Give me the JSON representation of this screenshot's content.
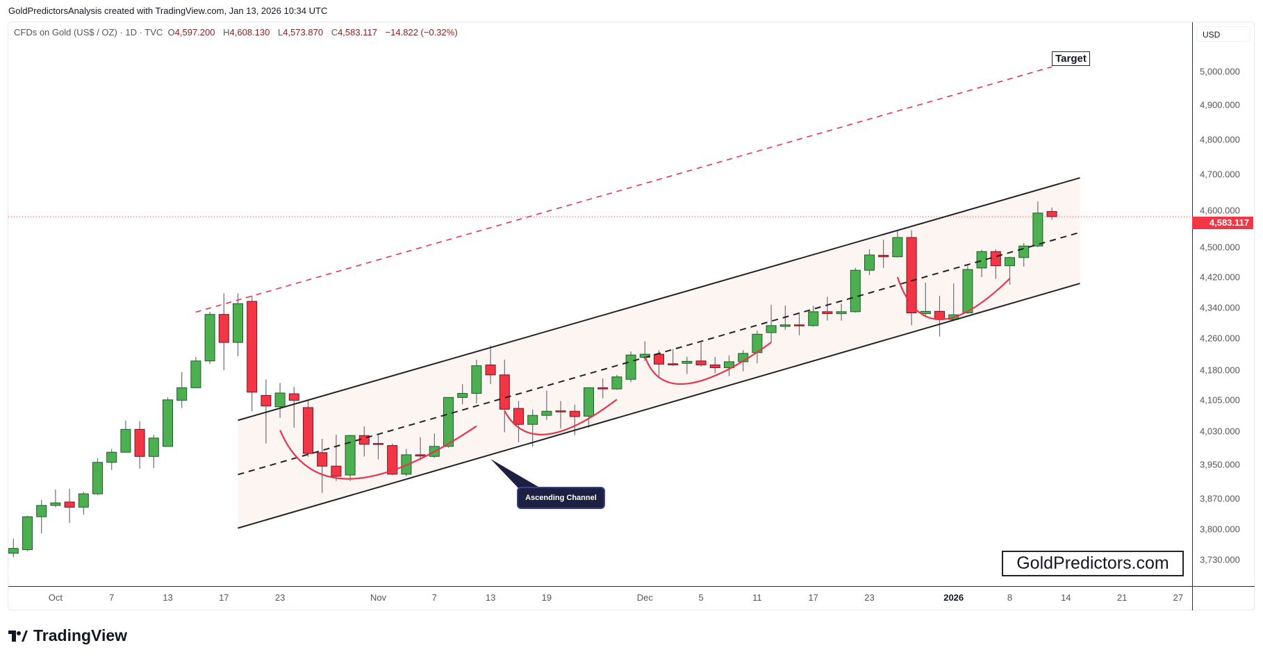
{
  "header": {
    "credit": "GoldPredictorsAnalysis created with TradingView.com, Jan 13, 2026 10:34 UTC",
    "symbol": "CFDs on Gold (US$ / OZ) · 1D · TVC",
    "open_label": "O",
    "open": "4,597.200",
    "high_label": "H",
    "high": "4,608.130",
    "low_label": "L",
    "low": "4,573.870",
    "close_label": "C",
    "close": "4,583.117",
    "change": "−14.822 (−0.32%)"
  },
  "price_axis": {
    "currency": "USD",
    "last_price": "4,583.117"
  },
  "brand": {
    "watermark": "GoldPredictors.com",
    "platform": "TradingView"
  },
  "colors": {
    "up": "#4caf50",
    "up_border": "#1e5b2a",
    "down": "#f23645",
    "down_border": "#7a1020",
    "channel": "#222222",
    "target_line": "#e8334a",
    "arc": "#e8334a",
    "channel_fill": "#fdf5f2",
    "callout_bg": "#1d2040"
  },
  "chart_data": {
    "type": "candlestick",
    "scale": "log",
    "ylim": [
      3672,
      5150
    ],
    "grid": false,
    "yticks": [
      5000,
      4900,
      4800,
      4700,
      4600,
      4500,
      4420,
      4340,
      4260,
      4180,
      4105,
      4030,
      3950,
      3870,
      3800,
      3730
    ],
    "ytick_labels": [
      "5,000.000",
      "4,900.000",
      "4,800.000",
      "4,700.000",
      "4,600.000",
      "4,500.000",
      "4,420.000",
      "4,340.000",
      "4,260.000",
      "4,180.000",
      "4,105.000",
      "4,030.000",
      "3,950.000",
      "3,870.000",
      "3,800.000",
      "3,730.000"
    ],
    "xticks": [
      {
        "date": "2025-10-01",
        "label": "Oct"
      },
      {
        "date": "2025-10-07",
        "label": "7"
      },
      {
        "date": "2025-10-13",
        "label": "13"
      },
      {
        "date": "2025-10-17",
        "label": "17"
      },
      {
        "date": "2025-10-23",
        "label": "23"
      },
      {
        "date": "2025-11-03",
        "label": "Nov"
      },
      {
        "date": "2025-11-07",
        "label": "7"
      },
      {
        "date": "2025-11-13",
        "label": "13"
      },
      {
        "date": "2025-11-19",
        "label": "19"
      },
      {
        "date": "2025-12-01",
        "label": "Dec"
      },
      {
        "date": "2025-12-05",
        "label": "5"
      },
      {
        "date": "2025-12-11",
        "label": "11"
      },
      {
        "date": "2025-12-17",
        "label": "17"
      },
      {
        "date": "2025-12-23",
        "label": "23"
      },
      {
        "date": "2026-01-02",
        "label": "2026",
        "bold": true
      },
      {
        "date": "2026-01-08",
        "label": "8"
      },
      {
        "date": "2026-01-14",
        "label": "14"
      },
      {
        "date": "2026-01-20",
        "label": "21"
      },
      {
        "date": "2026-01-26",
        "label": "27"
      }
    ],
    "candles_fields": [
      "date",
      "open",
      "high",
      "low",
      "close"
    ],
    "candles": [
      [
        "2025-09-26",
        3745,
        3778,
        3736,
        3756
      ],
      [
        "2025-09-29",
        3753,
        3830,
        3750,
        3828
      ],
      [
        "2025-09-30",
        3828,
        3867,
        3790,
        3854
      ],
      [
        "2025-10-01",
        3854,
        3891,
        3850,
        3860
      ],
      [
        "2025-10-02",
        3862,
        3893,
        3814,
        3850
      ],
      [
        "2025-10-03",
        3850,
        3886,
        3833,
        3881
      ],
      [
        "2025-10-06",
        3881,
        3965,
        3878,
        3955
      ],
      [
        "2025-10-07",
        3955,
        3987,
        3937,
        3979
      ],
      [
        "2025-10-08",
        3979,
        4055,
        3979,
        4034
      ],
      [
        "2025-10-09",
        4034,
        4054,
        3940,
        3969
      ],
      [
        "2025-10-10",
        3969,
        4021,
        3941,
        4013
      ],
      [
        "2025-10-13",
        3993,
        4112,
        3992,
        4106
      ],
      [
        "2025-10-14",
        4105,
        4175,
        4086,
        4136
      ],
      [
        "2025-10-15",
        4136,
        4213,
        4136,
        4203
      ],
      [
        "2025-10-16",
        4203,
        4329,
        4195,
        4322
      ],
      [
        "2025-10-17",
        4322,
        4377,
        4180,
        4250
      ],
      [
        "2025-10-20",
        4250,
        4377,
        4215,
        4350
      ],
      [
        "2025-10-21",
        4356,
        4371,
        4078,
        4125
      ],
      [
        "2025-10-22",
        4117,
        4157,
        4000,
        4091
      ],
      [
        "2025-10-23",
        4089,
        4148,
        4062,
        4123
      ],
      [
        "2025-10-24",
        4121,
        4138,
        4038,
        4105
      ],
      [
        "2025-10-27",
        4087,
        4104,
        3968,
        3976
      ],
      [
        "2025-10-28",
        3978,
        4011,
        3883,
        3946
      ],
      [
        "2025-10-29",
        3946,
        4021,
        3911,
        3922
      ],
      [
        "2025-10-30",
        3925,
        4021,
        3911,
        4019
      ],
      [
        "2025-10-31",
        4019,
        4041,
        3969,
        3998
      ],
      [
        "2025-11-03",
        4000,
        4020,
        3962,
        3998
      ],
      [
        "2025-11-04",
        3995,
        4000,
        3925,
        3927
      ],
      [
        "2025-11-05",
        3927,
        3987,
        3922,
        3973
      ],
      [
        "2025-11-06",
        3973,
        4015,
        3960,
        3970
      ],
      [
        "2025-11-07",
        3969,
        4024,
        3966,
        3993
      ],
      [
        "2025-11-10",
        3993,
        4112,
        3990,
        4112
      ],
      [
        "2025-11-11",
        4112,
        4145,
        4095,
        4122
      ],
      [
        "2025-11-12",
        4122,
        4206,
        4097,
        4191
      ],
      [
        "2025-11-13",
        4193,
        4242,
        4145,
        4168
      ],
      [
        "2025-11-14",
        4168,
        4206,
        4027,
        4083
      ],
      [
        "2025-11-17",
        4085,
        4103,
        4003,
        4046
      ],
      [
        "2025-11-18",
        4046,
        4082,
        3992,
        4068
      ],
      [
        "2025-11-19",
        4068,
        4129,
        4057,
        4078
      ],
      [
        "2025-11-20",
        4079,
        4103,
        4036,
        4077
      ],
      [
        "2025-11-21",
        4078,
        4094,
        4020,
        4065
      ],
      [
        "2025-11-24",
        4066,
        4137,
        4038,
        4136
      ],
      [
        "2025-11-25",
        4136,
        4159,
        4110,
        4133
      ],
      [
        "2025-11-26",
        4133,
        4168,
        4131,
        4163
      ],
      [
        "2025-11-28",
        4157,
        4227,
        4150,
        4218
      ],
      [
        "2025-12-01",
        4212,
        4253,
        4203,
        4220
      ],
      [
        "2025-12-02",
        4220,
        4230,
        4160,
        4195
      ],
      [
        "2025-12-03",
        4196,
        4233,
        4191,
        4193
      ],
      [
        "2025-12-04",
        4197,
        4214,
        4170,
        4202
      ],
      [
        "2025-12-05",
        4203,
        4250,
        4189,
        4193
      ],
      [
        "2025-12-08",
        4193,
        4213,
        4172,
        4186
      ],
      [
        "2025-12-09",
        4186,
        4217,
        4165,
        4201
      ],
      [
        "2025-12-10",
        4201,
        4230,
        4177,
        4222
      ],
      [
        "2025-12-11",
        4224,
        4280,
        4197,
        4271
      ],
      [
        "2025-12-12",
        4275,
        4347,
        4250,
        4293
      ],
      [
        "2025-12-15",
        4291,
        4345,
        4282,
        4295
      ],
      [
        "2025-12-16",
        4295,
        4327,
        4268,
        4293
      ],
      [
        "2025-12-17",
        4293,
        4344,
        4290,
        4329
      ],
      [
        "2025-12-18",
        4329,
        4368,
        4306,
        4324
      ],
      [
        "2025-12-19",
        4324,
        4350,
        4306,
        4329
      ],
      [
        "2025-12-22",
        4329,
        4444,
        4327,
        4438
      ],
      [
        "2025-12-23",
        4438,
        4494,
        4425,
        4479
      ],
      [
        "2025-12-24",
        4478,
        4520,
        4444,
        4474
      ],
      [
        "2025-12-26",
        4474,
        4544,
        4472,
        4526
      ],
      [
        "2025-12-29",
        4526,
        4546,
        4294,
        4326
      ],
      [
        "2025-12-30",
        4324,
        4405,
        4315,
        4330
      ],
      [
        "2025-12-31",
        4330,
        4370,
        4265,
        4309
      ],
      [
        "2026-01-02",
        4309,
        4403,
        4305,
        4321
      ],
      [
        "2026-01-05",
        4326,
        4450,
        4324,
        4440
      ],
      [
        "2026-01-06",
        4444,
        4493,
        4420,
        4488
      ],
      [
        "2026-01-07",
        4488,
        4494,
        4415,
        4450
      ],
      [
        "2026-01-08",
        4450,
        4474,
        4400,
        4472
      ],
      [
        "2026-01-09",
        4472,
        4511,
        4448,
        4503
      ],
      [
        "2026-01-12",
        4503,
        4625,
        4500,
        4593
      ],
      [
        "2026-01-13",
        4597.2,
        4608.13,
        4573.87,
        4583.117
      ]
    ],
    "last_price": 4583.117,
    "annotations": {
      "channel_upper": [
        {
          "date": "2025-10-20",
          "price": 4056
        },
        {
          "date": "2026-01-15",
          "price": 4691
        }
      ],
      "channel_mid": [
        {
          "date": "2025-10-20",
          "price": 3926
        },
        {
          "date": "2026-01-15",
          "price": 4540
        }
      ],
      "channel_lower": [
        {
          "date": "2025-10-20",
          "price": 3802
        },
        {
          "date": "2026-01-15",
          "price": 4403
        }
      ],
      "target_line": [
        {
          "date": "2025-10-15",
          "price": 4328
        },
        {
          "date": "2026-01-13",
          "price": 5014
        }
      ],
      "target_label": "Target",
      "arcs": [
        [
          {
            "date": "2025-10-23",
            "price": 4032
          },
          {
            "date": "2025-10-30",
            "price": 3916
          },
          {
            "date": "2025-11-12",
            "price": 4042
          }
        ],
        [
          {
            "date": "2025-11-14",
            "price": 4079
          },
          {
            "date": "2025-11-19",
            "price": 4022
          },
          {
            "date": "2025-11-26",
            "price": 4107
          }
        ],
        [
          {
            "date": "2025-12-01",
            "price": 4215
          },
          {
            "date": "2025-12-04",
            "price": 4146
          },
          {
            "date": "2025-12-12",
            "price": 4250
          }
        ],
        [
          {
            "date": "2025-12-26",
            "price": 4420
          },
          {
            "date": "2025-12-31",
            "price": 4309
          },
          {
            "date": "2026-01-08",
            "price": 4416
          }
        ]
      ],
      "callout": {
        "text": "Ascending Channel",
        "date": "2025-11-13",
        "price": 3963
      }
    }
  }
}
